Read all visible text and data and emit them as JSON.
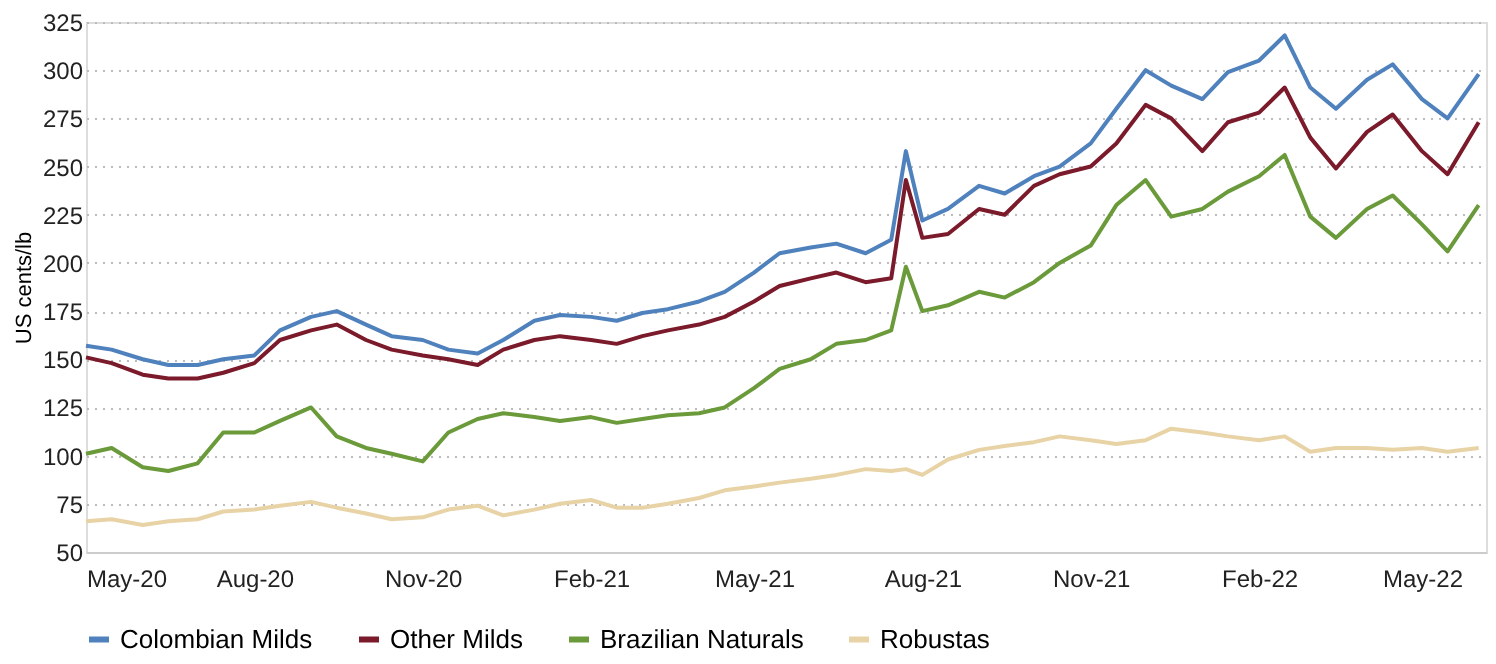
{
  "chart_data": {
    "type": "line",
    "ylabel": "US cents/lb",
    "x": [
      "2020-05-01",
      "2020-05-15",
      "2020-06-01",
      "2020-06-15",
      "2020-07-01",
      "2020-07-15",
      "2020-08-01",
      "2020-08-15",
      "2020-09-01",
      "2020-09-15",
      "2020-10-01",
      "2020-10-15",
      "2020-11-01",
      "2020-11-15",
      "2020-12-01",
      "2020-12-15",
      "2021-01-01",
      "2021-01-15",
      "2021-02-01",
      "2021-02-15",
      "2021-03-01",
      "2021-03-15",
      "2021-04-01",
      "2021-04-15",
      "2021-05-01",
      "2021-05-15",
      "2021-06-01",
      "2021-06-15",
      "2021-07-01",
      "2021-07-15",
      "2021-07-23",
      "2021-08-01",
      "2021-08-15",
      "2021-09-01",
      "2021-09-15",
      "2021-10-01",
      "2021-10-15",
      "2021-11-01",
      "2021-11-15",
      "2021-12-01",
      "2021-12-15",
      "2022-01-01",
      "2022-01-15",
      "2022-02-01",
      "2022-02-15",
      "2022-03-01",
      "2022-03-15",
      "2022-04-01",
      "2022-04-15",
      "2022-05-01",
      "2022-05-15",
      "2022-06-01"
    ],
    "series": [
      {
        "name": "Colombian Milds",
        "color": "#4f81bd",
        "values": [
          157,
          155,
          150,
          147,
          147,
          150,
          152,
          165,
          172,
          175,
          168,
          162,
          160,
          155,
          153,
          160,
          170,
          173,
          172,
          170,
          174,
          176,
          180,
          185,
          195,
          205,
          208,
          210,
          205,
          212,
          258,
          222,
          228,
          240,
          236,
          245,
          250,
          262,
          280,
          300,
          292,
          285,
          299,
          305,
          318,
          291,
          280,
          295,
          303,
          285,
          275,
          298
        ]
      },
      {
        "name": "Other Milds",
        "color": "#7b1a2a",
        "values": [
          151,
          148,
          142,
          140,
          140,
          143,
          148,
          160,
          165,
          168,
          160,
          155,
          152,
          150,
          147,
          155,
          160,
          162,
          160,
          158,
          162,
          165,
          168,
          172,
          180,
          188,
          192,
          195,
          190,
          192,
          243,
          213,
          215,
          228,
          225,
          240,
          246,
          250,
          262,
          282,
          275,
          258,
          273,
          278,
          291,
          265,
          249,
          268,
          277,
          258,
          246,
          273
        ]
      },
      {
        "name": "Brazilian Naturals",
        "color": "#6a9a3a",
        "values": [
          101,
          104,
          94,
          92,
          96,
          112,
          112,
          118,
          125,
          110,
          104,
          101,
          97,
          112,
          119,
          122,
          120,
          118,
          120,
          117,
          119,
          121,
          122,
          125,
          135,
          145,
          150,
          158,
          160,
          165,
          198,
          175,
          178,
          185,
          182,
          190,
          200,
          209,
          230,
          243,
          224,
          228,
          237,
          245,
          256,
          224,
          213,
          228,
          235,
          220,
          206,
          230
        ]
      },
      {
        "name": "Robustas",
        "color": "#e8d3a6",
        "values": [
          66,
          67,
          64,
          66,
          67,
          71,
          72,
          74,
          76,
          73,
          70,
          67,
          68,
          72,
          74,
          69,
          72,
          75,
          77,
          73,
          73,
          75,
          78,
          82,
          84,
          86,
          88,
          90,
          93,
          92,
          93,
          90,
          98,
          103,
          105,
          107,
          110,
          108,
          106,
          108,
          114,
          112,
          110,
          108,
          110,
          102,
          104,
          104,
          103,
          104,
          102,
          104
        ]
      }
    ],
    "xlim": [
      "2020-05-01",
      "2022-06-05"
    ],
    "xticks": [
      {
        "value": "2020-05-01",
        "label": "May-20"
      },
      {
        "value": "2020-08-01",
        "label": "Aug-20"
      },
      {
        "value": "2020-11-01",
        "label": "Nov-20"
      },
      {
        "value": "2021-02-01",
        "label": "Feb-21"
      },
      {
        "value": "2021-05-01",
        "label": "May-21"
      },
      {
        "value": "2021-08-01",
        "label": "Aug-21"
      },
      {
        "value": "2021-11-01",
        "label": "Nov-21"
      },
      {
        "value": "2022-02-01",
        "label": "Feb-22"
      },
      {
        "value": "2022-05-01",
        "label": "May-22"
      }
    ],
    "ylim": [
      50,
      325
    ],
    "yticks": [
      50,
      75,
      100,
      125,
      150,
      175,
      200,
      225,
      250,
      275,
      300,
      325
    ],
    "grid": "y",
    "legend": "bottom",
    "line_style": "solid",
    "marker": "none"
  }
}
